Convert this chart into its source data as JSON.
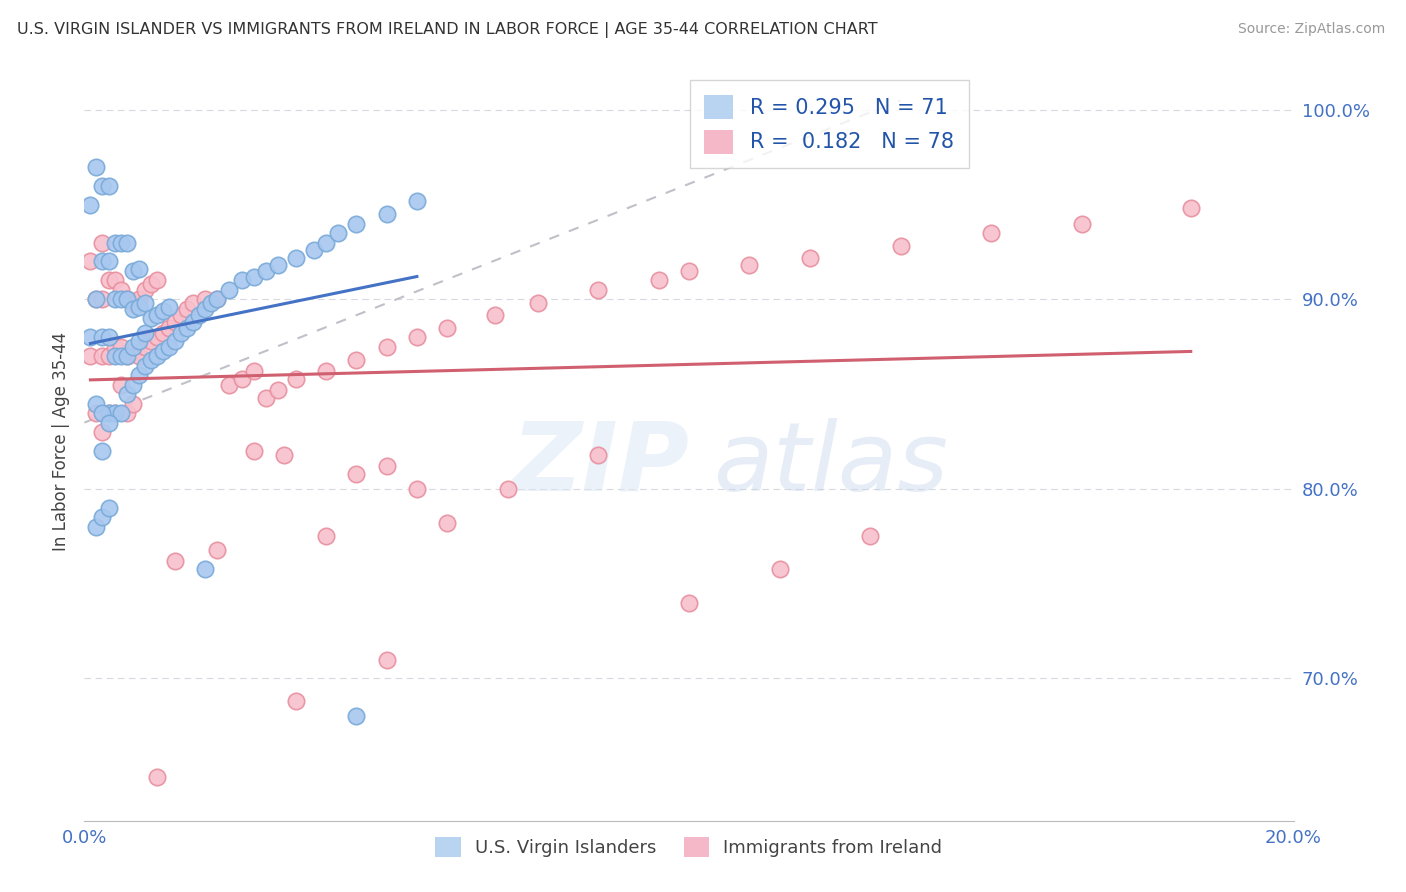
{
  "title": "U.S. VIRGIN ISLANDER VS IMMIGRANTS FROM IRELAND IN LABOR FORCE | AGE 35-44 CORRELATION CHART",
  "source": "Source: ZipAtlas.com",
  "ylabel": "In Labor Force | Age 35-44",
  "xlim": [
    0.0,
    0.2
  ],
  "ylim": [
    0.625,
    1.025
  ],
  "xticks": [
    0.0,
    0.2
  ],
  "xticklabels": [
    "0.0%",
    "20.0%"
  ],
  "yticks": [
    0.7,
    0.8,
    0.9,
    1.0
  ],
  "yticklabels": [
    "70.0%",
    "80.0%",
    "90.0%",
    "100.0%"
  ],
  "legend_bottom": [
    "U.S. Virgin Islanders",
    "Immigrants from Ireland"
  ],
  "blue_R": 0.295,
  "blue_N": 71,
  "pink_R": 0.182,
  "pink_N": 78,
  "blue_color": "#a8c8f0",
  "blue_edge": "#7aaad8",
  "pink_color": "#f8c0cc",
  "pink_edge": "#e890a0",
  "blue_line_color": "#4472c4",
  "pink_line_color": "#d06070",
  "dash_color": "#c0c0c8",
  "grid_color": "#d8d8e0",
  "tick_color": "#4472c4",
  "bg_color": "#ffffff",
  "blue_scatter_x": [
    0.001,
    0.001,
    0.002,
    0.002,
    0.003,
    0.003,
    0.003,
    0.003,
    0.004,
    0.004,
    0.004,
    0.004,
    0.005,
    0.005,
    0.005,
    0.005,
    0.006,
    0.006,
    0.006,
    0.006,
    0.007,
    0.007,
    0.007,
    0.007,
    0.008,
    0.008,
    0.008,
    0.008,
    0.009,
    0.009,
    0.009,
    0.009,
    0.01,
    0.01,
    0.01,
    0.011,
    0.011,
    0.012,
    0.012,
    0.013,
    0.013,
    0.014,
    0.014,
    0.015,
    0.016,
    0.017,
    0.018,
    0.019,
    0.02,
    0.021,
    0.022,
    0.024,
    0.026,
    0.028,
    0.03,
    0.032,
    0.035,
    0.038,
    0.04,
    0.042,
    0.045,
    0.05,
    0.055,
    0.002,
    0.002,
    0.003,
    0.003,
    0.004,
    0.004,
    0.02,
    0.045
  ],
  "blue_scatter_y": [
    0.88,
    0.95,
    0.9,
    0.97,
    0.82,
    0.88,
    0.92,
    0.96,
    0.84,
    0.88,
    0.92,
    0.96,
    0.84,
    0.87,
    0.9,
    0.93,
    0.84,
    0.87,
    0.9,
    0.93,
    0.85,
    0.87,
    0.9,
    0.93,
    0.855,
    0.875,
    0.895,
    0.915,
    0.86,
    0.878,
    0.896,
    0.916,
    0.865,
    0.882,
    0.898,
    0.868,
    0.89,
    0.87,
    0.892,
    0.873,
    0.894,
    0.875,
    0.896,
    0.878,
    0.882,
    0.885,
    0.888,
    0.892,
    0.895,
    0.898,
    0.9,
    0.905,
    0.91,
    0.912,
    0.915,
    0.918,
    0.922,
    0.926,
    0.93,
    0.935,
    0.94,
    0.945,
    0.952,
    0.78,
    0.845,
    0.785,
    0.84,
    0.79,
    0.835,
    0.758,
    0.68
  ],
  "pink_scatter_x": [
    0.001,
    0.001,
    0.002,
    0.002,
    0.003,
    0.003,
    0.003,
    0.003,
    0.004,
    0.004,
    0.004,
    0.005,
    0.005,
    0.005,
    0.006,
    0.006,
    0.006,
    0.007,
    0.007,
    0.007,
    0.008,
    0.008,
    0.008,
    0.009,
    0.009,
    0.01,
    0.01,
    0.011,
    0.011,
    0.012,
    0.012,
    0.013,
    0.014,
    0.015,
    0.016,
    0.017,
    0.018,
    0.02,
    0.022,
    0.024,
    0.026,
    0.028,
    0.03,
    0.032,
    0.035,
    0.04,
    0.045,
    0.05,
    0.055,
    0.06,
    0.068,
    0.075,
    0.085,
    0.095,
    0.1,
    0.11,
    0.12,
    0.135,
    0.15,
    0.165,
    0.183,
    0.1,
    0.115,
    0.13,
    0.07,
    0.085,
    0.06,
    0.04,
    0.055,
    0.05,
    0.033,
    0.045,
    0.028,
    0.022,
    0.015,
    0.035,
    0.05,
    0.012
  ],
  "pink_scatter_y": [
    0.87,
    0.92,
    0.84,
    0.9,
    0.83,
    0.87,
    0.9,
    0.93,
    0.84,
    0.87,
    0.91,
    0.84,
    0.875,
    0.91,
    0.855,
    0.875,
    0.905,
    0.84,
    0.87,
    0.9,
    0.845,
    0.872,
    0.898,
    0.87,
    0.9,
    0.875,
    0.905,
    0.878,
    0.908,
    0.88,
    0.91,
    0.882,
    0.885,
    0.888,
    0.892,
    0.895,
    0.898,
    0.9,
    0.9,
    0.855,
    0.858,
    0.862,
    0.848,
    0.852,
    0.858,
    0.862,
    0.868,
    0.875,
    0.88,
    0.885,
    0.892,
    0.898,
    0.905,
    0.91,
    0.915,
    0.918,
    0.922,
    0.928,
    0.935,
    0.94,
    0.948,
    0.74,
    0.758,
    0.775,
    0.8,
    0.818,
    0.782,
    0.775,
    0.8,
    0.812,
    0.818,
    0.808,
    0.82,
    0.768,
    0.762,
    0.688,
    0.71,
    0.648
  ]
}
